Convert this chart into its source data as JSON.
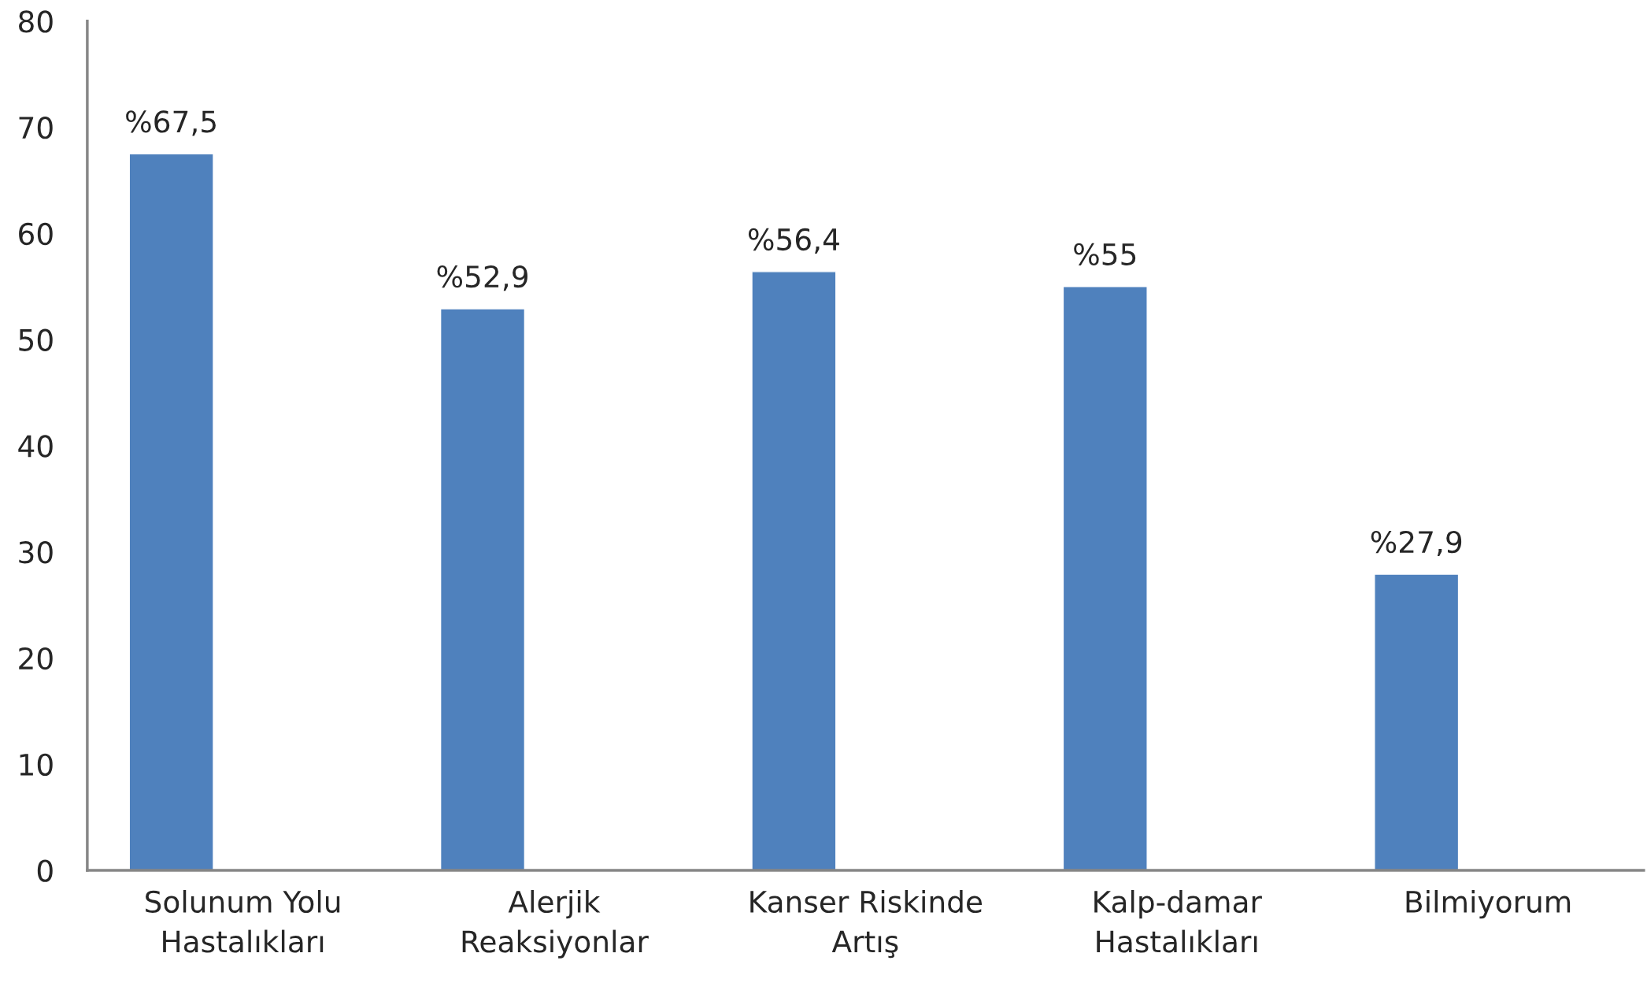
{
  "chart_data": {
    "type": "bar",
    "categories": [
      "Solunum Yolu\nHastalıkları",
      "Alerjik\nReaksiyonlar",
      "Kanser Riskinde\nArtış",
      "Kalp-damar\nHastalıkları",
      "Bilmiyorum"
    ],
    "values": [
      67.5,
      52.9,
      56.4,
      55,
      27.9
    ],
    "value_labels": [
      "%67,5",
      "%52,9",
      "%56,4",
      "%55",
      "%27,9"
    ],
    "color": "#4f81bd",
    "ylim": [
      0,
      80
    ],
    "yticks": [
      0,
      10,
      20,
      30,
      40,
      50,
      60,
      70,
      80
    ],
    "grid": false,
    "legend": false
  }
}
